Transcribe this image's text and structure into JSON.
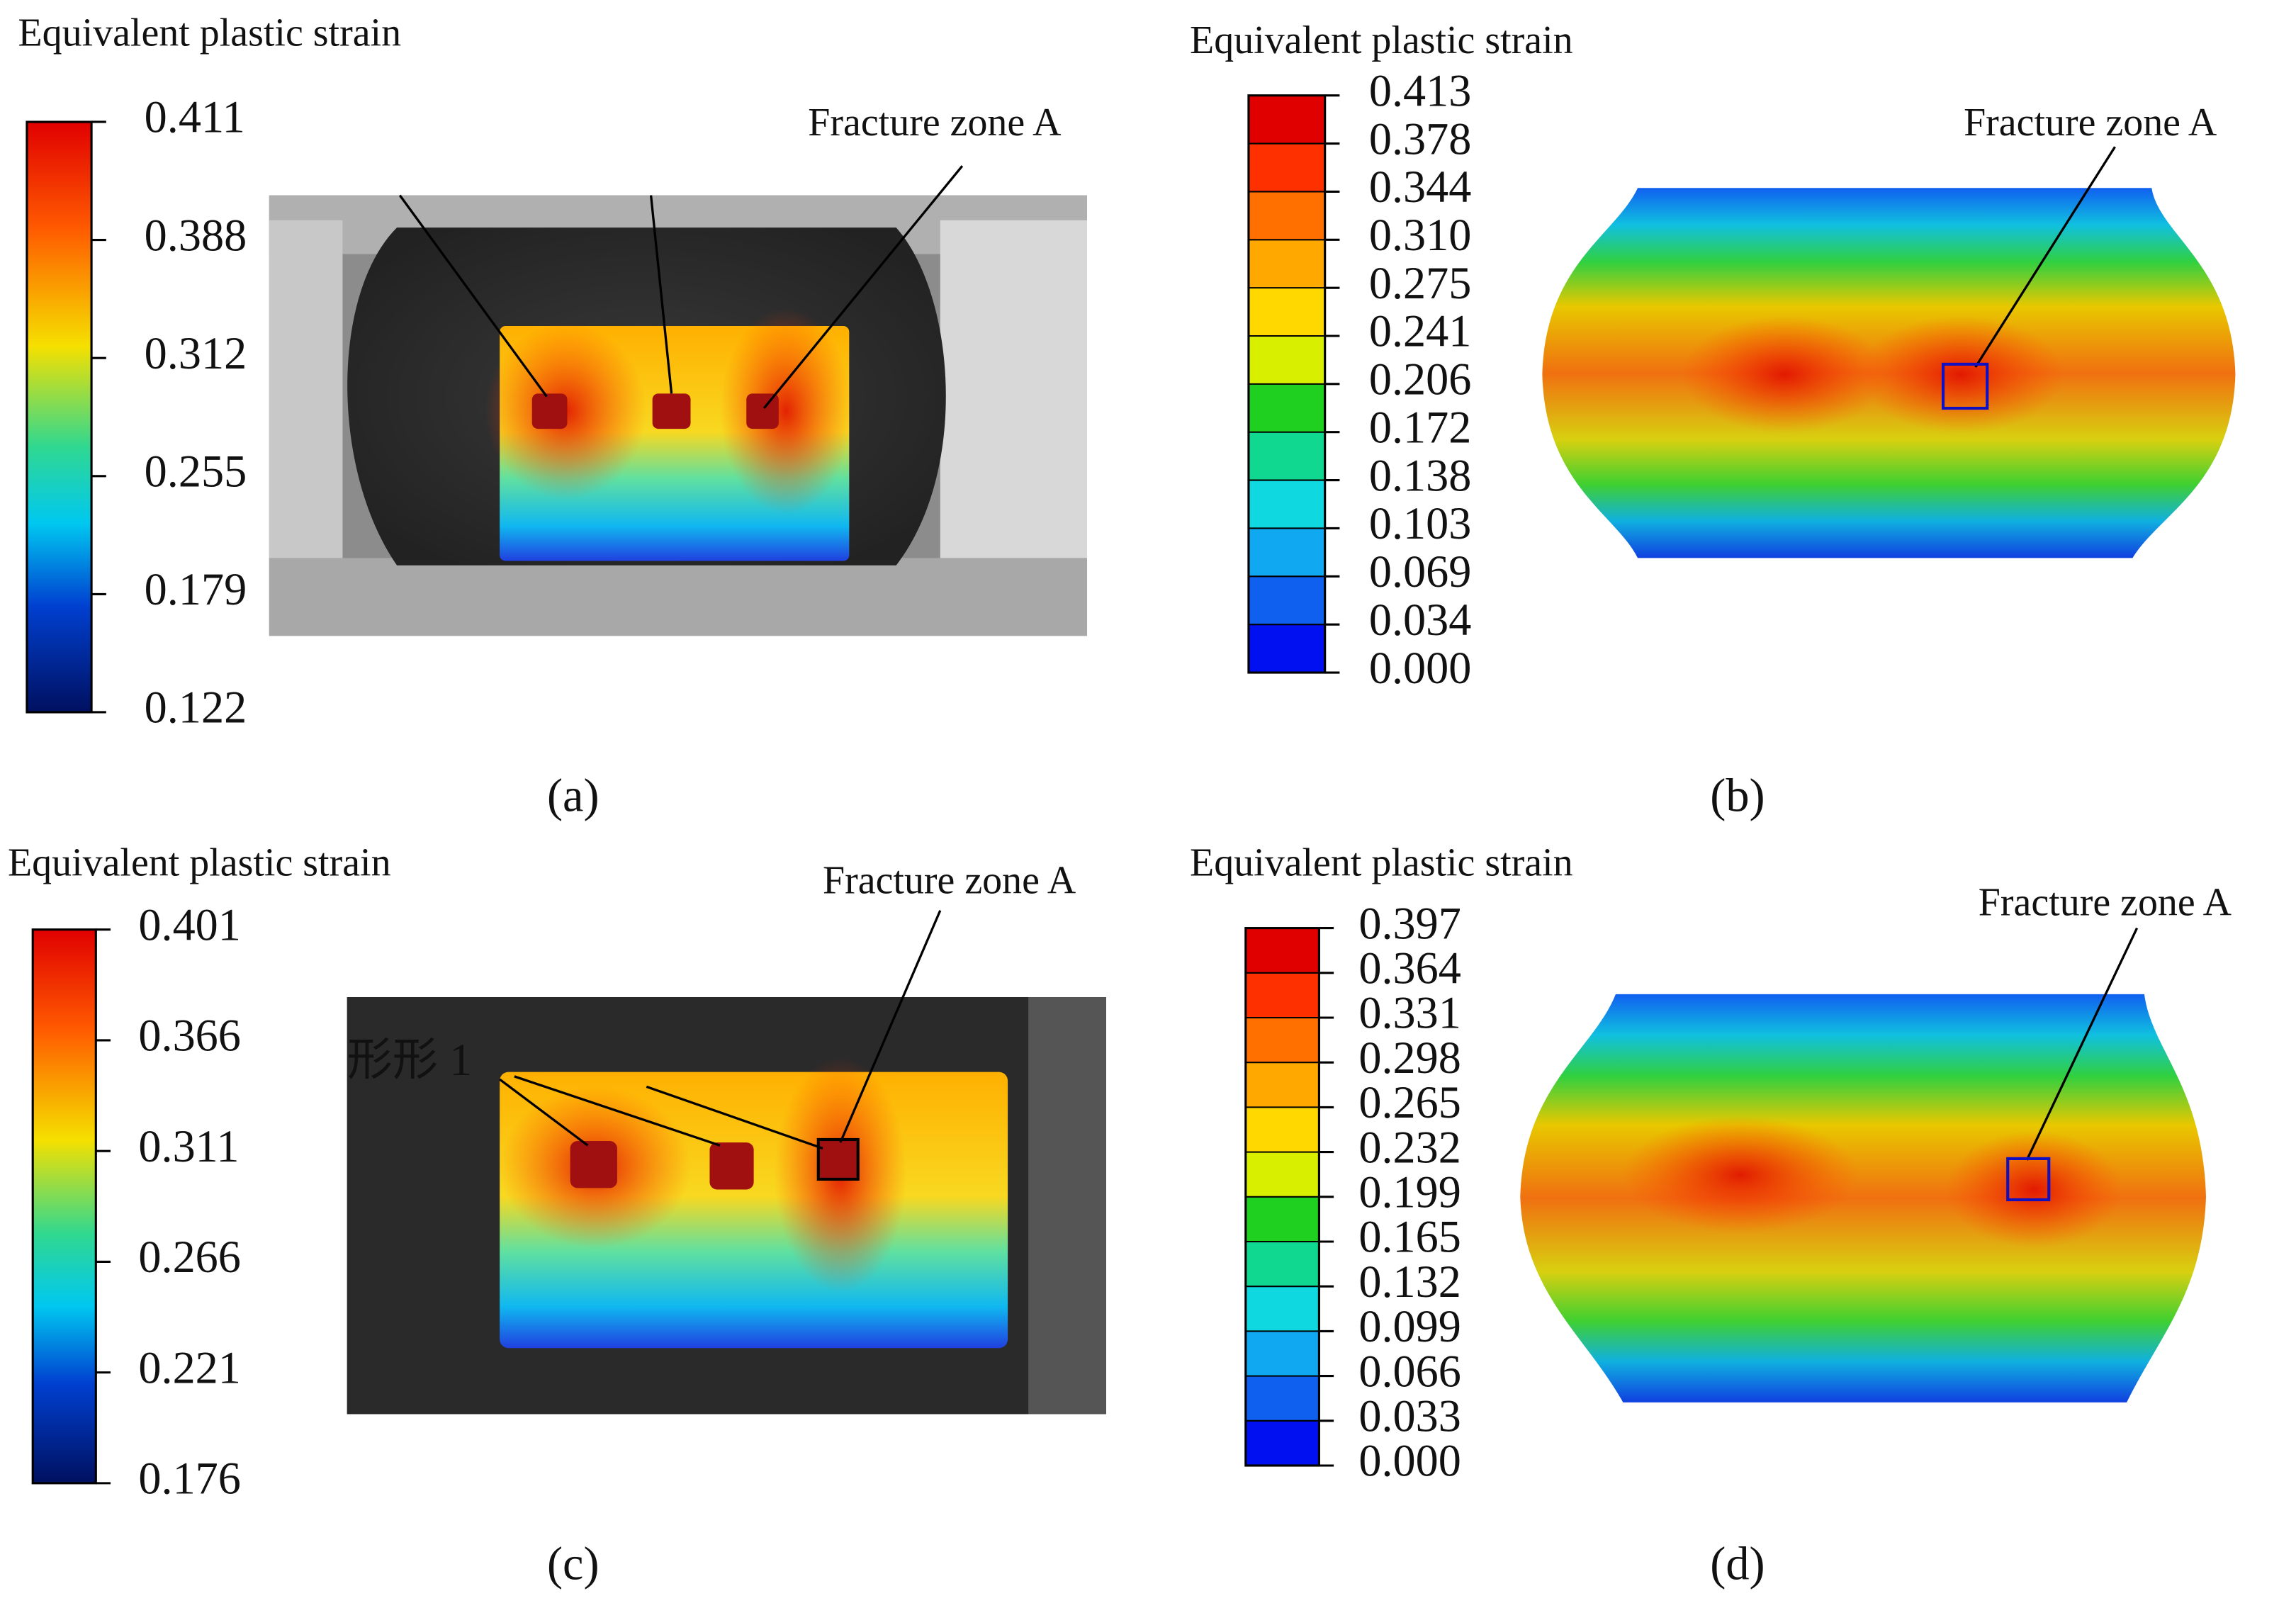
{
  "panels": [
    {
      "title": "Equivalent plastic strain",
      "ticks": [
        "0.411",
        "0.388",
        "0.312",
        "0.255",
        "0.179",
        "0.122"
      ],
      "annotation": "Fracture zone A",
      "label": "(a)"
    },
    {
      "title": "Equivalent plastic strain",
      "ticks": [
        "0.413",
        "0.378",
        "0.344",
        "0.310",
        "0.275",
        "0.241",
        "0.206",
        "0.172",
        "0.138",
        "0.103",
        "0.069",
        "0.034",
        "0.000"
      ],
      "annotation": "Fracture zone A",
      "label": "(b)"
    },
    {
      "title": "Equivalent plastic strain",
      "ticks": [
        "0.401",
        "0.366",
        "0.311",
        "0.266",
        "0.221",
        "0.176"
      ],
      "annotation": "Fracture zone A",
      "overlay": "形形 1",
      "label": "(c)"
    },
    {
      "title": "Equivalent plastic strain",
      "ticks": [
        "0.397",
        "0.364",
        "0.331",
        "0.298",
        "0.265",
        "0.232",
        "0.199",
        "0.165",
        "0.132",
        "0.099",
        "0.066",
        "0.033",
        "0.000"
      ],
      "annotation": "Fracture zone A",
      "label": "(d)"
    }
  ]
}
